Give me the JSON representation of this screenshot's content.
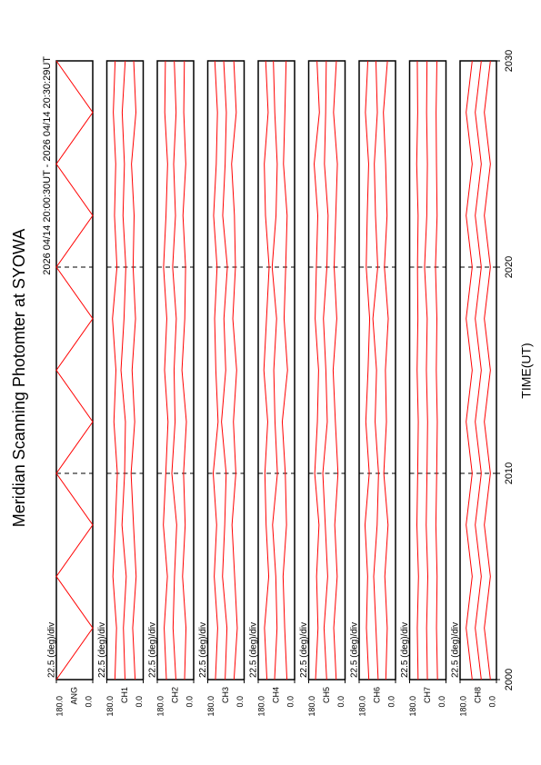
{
  "chart_data": {
    "type": "multi-line-panels",
    "title": "Meridian Scanning Photomter at SYOWA",
    "subtitle": "2026 04/14 20:00:30UT - 2026 04/14 20:30:29UT",
    "x_label": "TIME(UT)",
    "xlim": [
      2000,
      2030
    ],
    "xticks": [
      2000,
      2010,
      2020,
      2030
    ],
    "grid": true,
    "x": [
      2000,
      2002.5,
      2005,
      2007.5,
      2010,
      2012.5,
      2015,
      2017.5,
      2020,
      2022.5,
      2025,
      2027.5,
      2030
    ],
    "panels": [
      {
        "label": "ANG",
        "scale": "22.5 (deg)/div",
        "ylim": [
          0,
          180
        ],
        "yticks": [
          {
            "value": 180,
            "label": "180.0"
          },
          {
            "value": 0,
            "label": "0.0"
          }
        ],
        "series": [
          {
            "color": "#ff0000",
            "values": [
              180,
              0,
              180,
              0,
              180,
              0,
              180,
              0,
              180,
              0,
              180,
              0,
              180
            ]
          }
        ]
      },
      {
        "label": "CH1",
        "scale": "22.5 (deg)/div",
        "ylim": [
          0,
          180
        ],
        "yticks": [
          {
            "value": 180,
            "label": "180.0"
          },
          {
            "value": 0,
            "label": "0.0"
          }
        ],
        "series": [
          {
            "color": "#ff0000",
            "values": [
              40,
              52,
              35,
              48,
              60,
              42,
              55,
              38,
              50,
              45,
              58,
              36,
              47
            ]
          },
          {
            "color": "#ff0000",
            "values": [
              90,
              98,
              84,
              105,
              92,
              88,
              110,
              95,
              86,
              100,
              93,
              104,
              89
            ]
          },
          {
            "color": "#ff0000",
            "values": [
              140,
              132,
              150,
              138,
              128,
              145,
              135,
              152,
              130,
              142,
              136,
              148,
              139
            ]
          }
        ]
      },
      {
        "label": "CH2",
        "scale": "22.5 (deg)/div",
        "ylim": [
          0,
          180
        ],
        "yticks": [
          {
            "value": 180,
            "label": "180.0"
          },
          {
            "value": 0,
            "label": "0.0"
          }
        ],
        "series": [
          {
            "color": "#ff0000",
            "values": [
              45,
              38,
              55,
              42,
              50,
              36,
              58,
              44,
              40,
              53,
              39,
              49,
              46
            ]
          },
          {
            "color": "#ff0000",
            "values": [
              88,
              102,
              95,
              84,
              108,
              92,
              97,
              86,
              104,
              90,
              99,
              87,
              96
            ]
          },
          {
            "color": "#ff0000",
            "values": [
              135,
              146,
              130,
              150,
              138,
              127,
              144,
              133,
              149,
              137,
              129,
              143,
              140
            ]
          }
        ]
      },
      {
        "label": "CH3",
        "scale": "22.5 (deg)/div",
        "ylim": [
          0,
          180
        ],
        "yticks": [
          {
            "value": 180,
            "label": "180.0"
          },
          {
            "value": 0,
            "label": "0.0"
          }
        ],
        "series": [
          {
            "color": "#ff0000",
            "values": [
              50,
              34,
              47,
              60,
              41,
              53,
              37,
              56,
              43,
              48,
              62,
              39,
              51
            ]
          },
          {
            "color": "#ff0000",
            "values": [
              94,
              85,
              107,
              96,
              89,
              112,
              91,
              100,
              83,
              106,
              94,
              88,
              101
            ]
          },
          {
            "color": "#ff0000",
            "values": [
              142,
              131,
              148,
              136,
              153,
              129,
              140,
              146,
              134,
              151,
              138,
              132,
              145
            ]
          }
        ]
      },
      {
        "label": "CH4",
        "scale": "22.5 (deg)/div",
        "ylim": [
          0,
          180
        ],
        "yticks": [
          {
            "value": 180,
            "label": "180.0"
          },
          {
            "value": 0,
            "label": "0.0"
          }
        ],
        "series": [
          {
            "color": "#ff0000",
            "values": [
              38,
              49,
              57,
              40,
              46,
              61,
              35,
              52,
              44,
              37,
              55,
              48,
              42
            ]
          },
          {
            "color": "#ff0000",
            "values": [
              99,
              87,
              93,
              109,
              85,
              97,
              103,
              89,
              111,
              92,
              86,
              98,
              105
            ]
          },
          {
            "color": "#ff0000",
            "values": [
              137,
              149,
              128,
              141,
              147,
              133,
              152,
              139,
              126,
              144,
              150,
              131,
              143
            ]
          }
        ]
      },
      {
        "label": "CH5",
        "scale": "22.5 (deg)/div",
        "ylim": [
          0,
          180
        ],
        "yticks": [
          {
            "value": 180,
            "label": "180.0"
          },
          {
            "value": 0,
            "label": "0.0"
          }
        ],
        "series": [
          {
            "color": "#ff0000",
            "values": [
              44,
              56,
              39,
              51,
              35,
              48,
              59,
              41,
              54,
              46,
              38,
              57,
              43
            ]
          },
          {
            "color": "#ff0000",
            "values": [
              91,
              104,
              86,
              98,
              110,
              88,
              95,
              107,
              90,
              84,
              102,
              96,
              93
            ]
          },
          {
            "color": "#ff0000",
            "values": [
              146,
              134,
              141,
              129,
              150,
              137,
              131,
              148,
              142,
              135,
              153,
              127,
              139
            ]
          }
        ]
      },
      {
        "label": "CH6",
        "scale": "22.5 (deg)/div",
        "ylim": [
          0,
          180
        ],
        "yticks": [
          {
            "value": 180,
            "label": "180.0"
          },
          {
            "value": 0,
            "label": "0.0"
          }
        ],
        "series": [
          {
            "color": "#ff0000",
            "values": [
              48,
              41,
              53,
              37,
              58,
              45,
              50,
              36,
              55,
              42,
              49,
              60,
              40
            ]
          },
          {
            "color": "#ff0000",
            "values": [
              86,
              97,
              108,
              91,
              84,
              101,
              94,
              112,
              88,
              99,
              105,
              90,
              97
            ]
          },
          {
            "color": "#ff0000",
            "values": [
              132,
              144,
              138,
              151,
              130,
              147,
              136,
              128,
              145,
              140,
              133,
              149,
              137
            ]
          }
        ]
      },
      {
        "label": "CH7",
        "scale": "22.5 (deg)/div",
        "ylim": [
          0,
          180
        ],
        "yticks": [
          {
            "value": 180,
            "label": "180.0"
          },
          {
            "value": 0,
            "label": "0.0"
          }
        ],
        "series": [
          {
            "color": "#ff0000",
            "values": [
              42,
              47,
              44,
              50,
              46,
              43,
              48,
              45,
              52,
              44,
              47,
              49,
              45
            ]
          },
          {
            "color": "#ff0000",
            "values": [
              92,
              96,
              90,
              98,
              94,
              91,
              97,
              93,
              106,
              95,
              92,
              96,
              94
            ]
          },
          {
            "color": "#ff0000",
            "values": [
              138,
              142,
              136,
              144,
              140,
              137,
              143,
              139,
              141,
              138,
              145,
              140,
              142
            ]
          }
        ]
      },
      {
        "label": "CH8",
        "scale": "22.5 (deg)/div",
        "ylim": [
          0,
          180
        ],
        "yticks": [
          {
            "value": 180,
            "label": "180.0"
          },
          {
            "value": 0,
            "label": "0.0"
          }
        ],
        "series": [
          {
            "color": "#ff0000",
            "values": [
              30,
              60,
              30,
              60,
              30,
              60,
              30,
              60,
              30,
              60,
              30,
              60,
              30
            ]
          },
          {
            "color": "#ff0000",
            "values": [
              75,
              105,
              75,
              105,
              75,
              105,
              75,
              105,
              75,
              105,
              75,
              105,
              75
            ]
          },
          {
            "color": "#ff0000",
            "values": [
              120,
              150,
              120,
              150,
              120,
              150,
              120,
              150,
              120,
              150,
              120,
              150,
              120
            ]
          }
        ]
      }
    ]
  }
}
